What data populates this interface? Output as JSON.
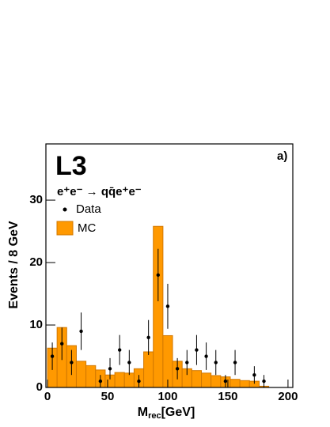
{
  "chart_data": {
    "type": "histogram",
    "experiment": "L3",
    "panel": "a)",
    "process": "e⁺e⁻ → qq̄e⁺e⁻",
    "x_label": {
      "main": "M",
      "sub": "rec",
      "unit": "[GeV]"
    },
    "y_label": "Events / 8 GeV",
    "xlim": [
      0,
      204
    ],
    "ylim": [
      0,
      39
    ],
    "xticks": [
      0,
      50,
      100,
      150,
      200
    ],
    "yticks": [
      0,
      10,
      20,
      30
    ],
    "bins": [
      0,
      8,
      16,
      24,
      32,
      40,
      48,
      56,
      64,
      72,
      80,
      88,
      96,
      104,
      112,
      120,
      128,
      136,
      144,
      152,
      160,
      168,
      176,
      184
    ],
    "series": [
      {
        "name": "Data",
        "color": "#000000",
        "x": [
          4,
          12,
          20,
          28,
          36,
          44,
          52,
          60,
          68,
          76,
          84,
          92,
          100,
          108,
          116,
          124,
          132,
          140,
          148,
          156,
          164,
          172,
          180
        ],
        "values": [
          5,
          7,
          4,
          9,
          null,
          1,
          3,
          6,
          4,
          1,
          8,
          18,
          13,
          3,
          4,
          6,
          5,
          4,
          1,
          4,
          null,
          2,
          1
        ],
        "errors": [
          2.2,
          2.6,
          2,
          3,
          null,
          1,
          1.7,
          2.4,
          2,
          1,
          2.8,
          4.2,
          3.6,
          1.7,
          2,
          2.4,
          2.2,
          2,
          1,
          2,
          null,
          1.4,
          1
        ]
      },
      {
        "name": "MC",
        "color": "#ff9900",
        "values": [
          6.3,
          9.6,
          6.7,
          4.2,
          3.5,
          2.8,
          2.0,
          2.4,
          2.3,
          3.0,
          5.7,
          25.8,
          8.3,
          4.2,
          3.0,
          2.7,
          2.3,
          1.9,
          1.7,
          1.3,
          1.1,
          1.0,
          0.2
        ]
      }
    ]
  }
}
